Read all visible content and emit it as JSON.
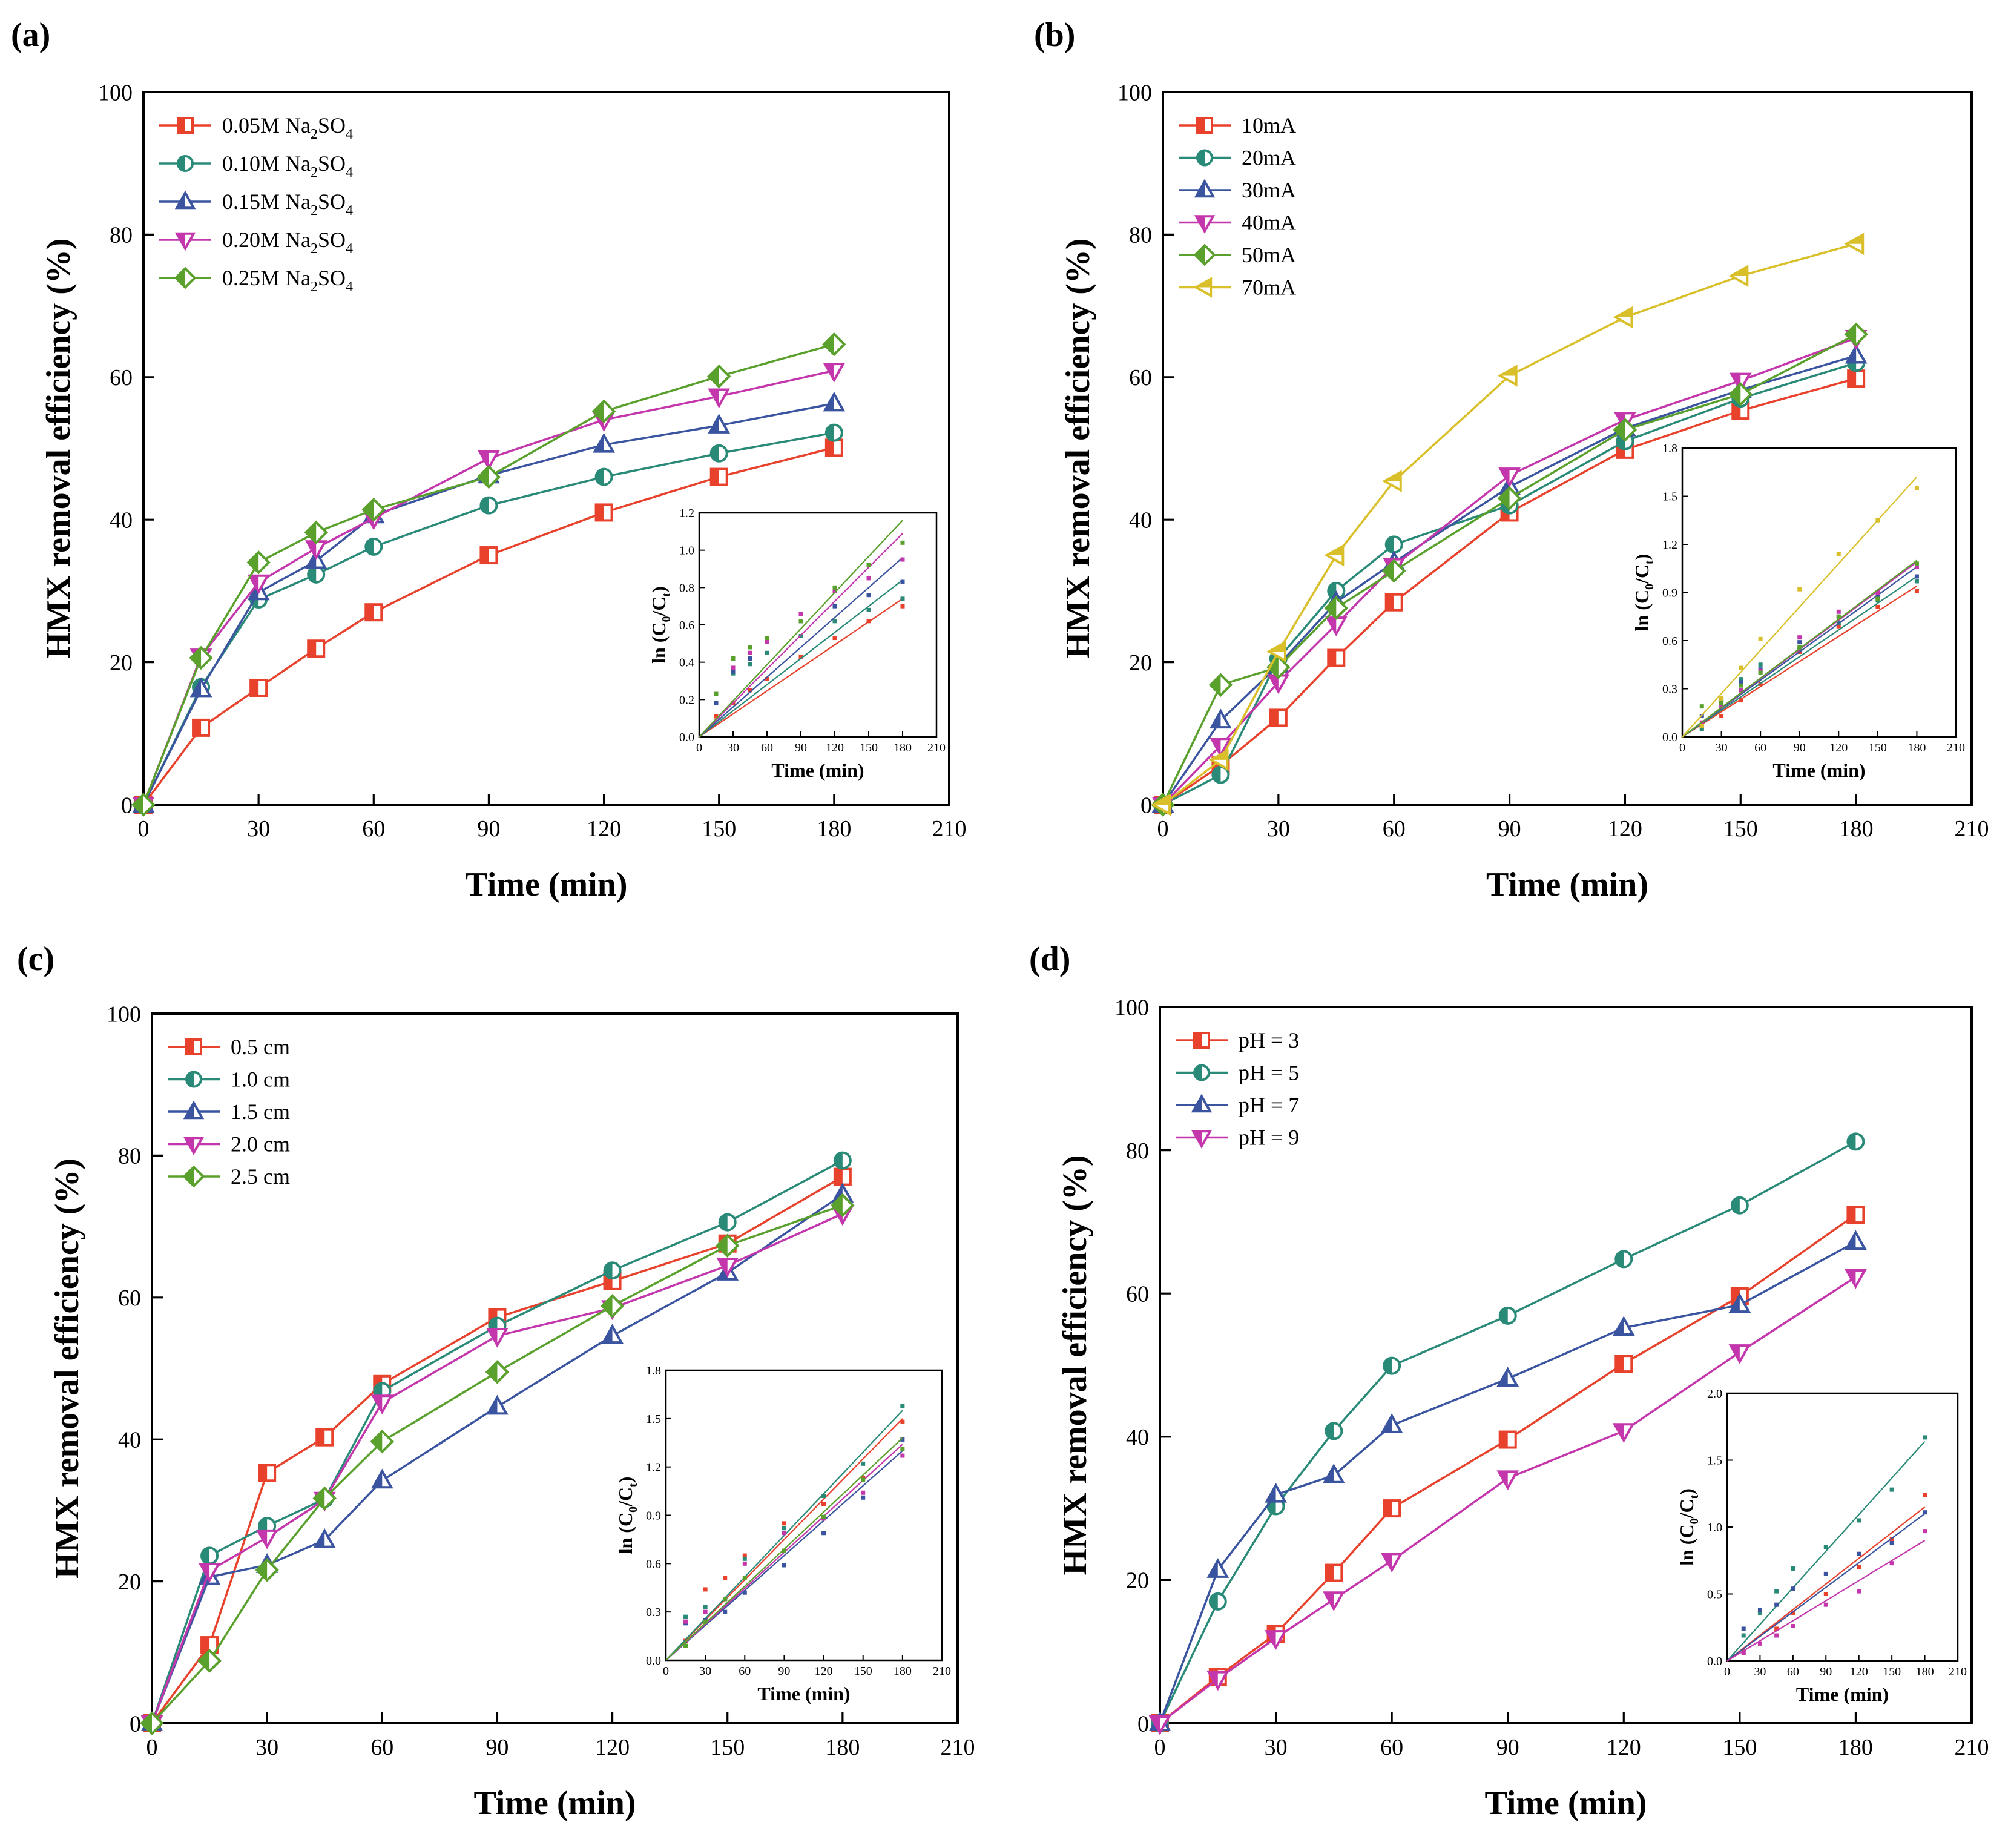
{
  "figure": {
    "panels": [
      {
        "letter": "(a)",
        "xlabel": "Time (min)",
        "ylabel": "HMX removal efficiency (%)",
        "inset": {
          "xlabel": "Time (min)",
          "ylabel": "ln (C0/Ct)",
          "ylabel_main": "ln (C",
          "ylabel_sub0": "0",
          "ylabel_mid": "/C",
          "ylabel_subt": "t",
          "ylabel_end": ")"
        }
      },
      {
        "letter": "(b)",
        "xlabel": "Time (min)",
        "ylabel": "HMX removal efficiency (%)",
        "inset": {
          "xlabel": "Time (min)",
          "ylabel": "ln (C0/Ct)",
          "ylabel_main": "ln (C",
          "ylabel_sub0": "0",
          "ylabel_mid": "/C",
          "ylabel_subt": "t",
          "ylabel_end": ")"
        }
      },
      {
        "letter": "(c)",
        "xlabel": "Time (min)",
        "ylabel": "HMX removal efficiency (%)",
        "inset": {
          "xlabel": "Time (min)",
          "ylabel": "ln (C0/Ct)",
          "ylabel_main": "ln (C",
          "ylabel_sub0": "0",
          "ylabel_mid": "/C",
          "ylabel_subt": "t",
          "ylabel_end": ")"
        }
      },
      {
        "letter": "(d)",
        "xlabel": "Time (min)",
        "ylabel": "HMX removal efficiency (%)",
        "inset": {
          "xlabel": "Time (min)",
          "ylabel": "ln (C0/Ct)",
          "ylabel_main": "ln (C",
          "ylabel_sub0": "0",
          "ylabel_mid": "/C",
          "ylabel_subt": "t",
          "ylabel_end": ")"
        }
      }
    ]
  },
  "chart_data": [
    {
      "panel": "(a)",
      "type": "line",
      "xlabel": "Time (min)",
      "ylabel": "HMX removal efficiency (%)",
      "xlim": [
        0,
        210
      ],
      "ylim": [
        0,
        100
      ],
      "xticks": [
        0,
        30,
        60,
        90,
        120,
        150,
        180,
        210
      ],
      "yticks": [
        0,
        20,
        40,
        60,
        80,
        100
      ],
      "legend_position": "top-left",
      "x": [
        0,
        15,
        30,
        45,
        60,
        90,
        120,
        150,
        180
      ],
      "series": [
        {
          "name": "0.05M Na2SO4",
          "label_pre": "0.05M Na",
          "label_s1": "2",
          "label_mid": "SO",
          "label_s2": "4",
          "color": "#e8412c",
          "marker": "square",
          "values": [
            0,
            10.8,
            16.4,
            21.9,
            27,
            35,
            41,
            46,
            50.1
          ]
        },
        {
          "name": "0.10M Na2SO4",
          "label_pre": "0.10M Na",
          "label_s1": "2",
          "label_mid": "SO",
          "label_s2": "4",
          "color": "#2a8a78",
          "marker": "circle",
          "values": [
            0,
            16.5,
            28.8,
            32.3,
            36.2,
            42,
            46,
            49.3,
            52.2
          ]
        },
        {
          "name": "0.15M Na2SO4",
          "label_pre": "0.15M Na",
          "label_s1": "2",
          "label_mid": "SO",
          "label_s2": "4",
          "color": "#3a54a0",
          "marker": "triangle-up",
          "values": [
            0,
            16.2,
            29.8,
            34.2,
            40.6,
            46.2,
            50.5,
            53.2,
            56.3
          ]
        },
        {
          "name": "0.20M Na2SO4",
          "label_pre": "0.20M Na",
          "label_s1": "2",
          "label_mid": "SO",
          "label_s2": "4",
          "color": "#c436ac",
          "marker": "triangle-down",
          "values": [
            0,
            20.8,
            31.2,
            36,
            40.2,
            48.6,
            54,
            57.3,
            60.9
          ]
        },
        {
          "name": "0.25M Na2SO4",
          "label_pre": "0.25M Na",
          "label_s1": "2",
          "label_mid": "SO",
          "label_s2": "4",
          "color": "#5aa02c",
          "marker": "diamond",
          "values": [
            0,
            20.6,
            34,
            38.2,
            41.4,
            46,
            55.2,
            60.1,
            64.6
          ]
        }
      ],
      "inset": {
        "xlabel": "Time (min)",
        "ylabel": "ln (C0/Ct)",
        "xlim": [
          0,
          210
        ],
        "ylim": [
          0,
          1.2
        ],
        "xticks": [
          0,
          30,
          60,
          90,
          120,
          150,
          180,
          210
        ],
        "yticks": [
          0.0,
          0.2,
          0.4,
          0.6,
          0.8,
          1.0,
          1.2
        ],
        "x": [
          15,
          30,
          45,
          60,
          90,
          120,
          150,
          180
        ],
        "series": [
          {
            "name": "0.05M Na2SO4",
            "color": "#e8412c",
            "values": [
              0.11,
              0.18,
              0.25,
              0.31,
              0.43,
              0.53,
              0.62,
              0.7
            ],
            "fit_end": 0.74
          },
          {
            "name": "0.10M Na2SO4",
            "color": "#2a8a78",
            "values": [
              0.18,
              0.34,
              0.39,
              0.45,
              0.54,
              0.62,
              0.68,
              0.74
            ],
            "fit_end": 0.84
          },
          {
            "name": "0.15M Na2SO4",
            "color": "#3a54a0",
            "values": [
              0.18,
              0.35,
              0.42,
              0.52,
              0.62,
              0.7,
              0.76,
              0.83
            ],
            "fit_end": 0.96
          },
          {
            "name": "0.20M Na2SO4",
            "color": "#c436ac",
            "values": [
              0.23,
              0.37,
              0.45,
              0.51,
              0.66,
              0.78,
              0.85,
              0.95
            ],
            "fit_end": 1.09
          },
          {
            "name": "0.25M Na2SO4",
            "color": "#5aa02c",
            "values": [
              0.23,
              0.42,
              0.48,
              0.53,
              0.62,
              0.8,
              0.92,
              1.04
            ],
            "fit_end": 1.16
          }
        ]
      }
    },
    {
      "panel": "(b)",
      "type": "line",
      "xlabel": "Time (min)",
      "ylabel": "HMX removal efficiency (%)",
      "xlim": [
        0,
        210
      ],
      "ylim": [
        0,
        100
      ],
      "xticks": [
        0,
        30,
        60,
        90,
        120,
        150,
        180,
        210
      ],
      "yticks": [
        0,
        20,
        40,
        60,
        80,
        100
      ],
      "legend_position": "top-left",
      "x": [
        0,
        15,
        30,
        45,
        60,
        90,
        120,
        150,
        180
      ],
      "series": [
        {
          "name": "10mA",
          "color": "#e8412c",
          "marker": "square",
          "values": [
            0,
            5.5,
            12.2,
            20.6,
            28.4,
            41,
            49.8,
            55.3,
            59.8
          ]
        },
        {
          "name": "20mA",
          "color": "#2a8a78",
          "marker": "circle",
          "values": [
            0,
            4.2,
            20.5,
            30,
            36.5,
            42,
            51,
            57,
            62
          ]
        },
        {
          "name": "30mA",
          "color": "#3a54a0",
          "marker": "triangle-up",
          "values": [
            0,
            11.8,
            19.6,
            28.4,
            34,
            44.6,
            52.8,
            58.2,
            63
          ]
        },
        {
          "name": "40mA",
          "color": "#c436ac",
          "marker": "triangle-down",
          "values": [
            0,
            8.3,
            17.2,
            25.3,
            33.5,
            46.2,
            54,
            59.5,
            65.5
          ]
        },
        {
          "name": "50mA",
          "color": "#5aa02c",
          "marker": "diamond",
          "values": [
            0,
            16.8,
            19.3,
            27.6,
            32.8,
            43,
            52.6,
            57.6,
            66
          ]
        },
        {
          "name": "70mA",
          "color": "#d9c02a",
          "marker": "triangle-left",
          "values": [
            0,
            6.3,
            21.5,
            35,
            45.4,
            60.2,
            68.4,
            74.2,
            78.7
          ]
        }
      ],
      "inset": {
        "xlabel": "Time (min)",
        "ylabel": "ln (C0/Ct)",
        "xlim": [
          0,
          210
        ],
        "ylim": [
          0,
          1.8
        ],
        "xticks": [
          0,
          30,
          60,
          90,
          120,
          150,
          180,
          210
        ],
        "yticks": [
          0.0,
          0.3,
          0.6,
          0.9,
          1.2,
          1.5,
          1.8
        ],
        "x": [
          15,
          30,
          45,
          60,
          90,
          120,
          150,
          180
        ],
        "series": [
          {
            "name": "10mA",
            "color": "#e8412c",
            "values": [
              0.06,
              0.13,
              0.23,
              0.33,
              0.53,
              0.69,
              0.81,
              0.91
            ],
            "fit_end": 0.94
          },
          {
            "name": "20mA",
            "color": "#2a8a78",
            "values": [
              0.05,
              0.23,
              0.36,
              0.45,
              0.55,
              0.71,
              0.85,
              0.97
            ],
            "fit_end": 1.0
          },
          {
            "name": "30mA",
            "color": "#3a54a0",
            "values": [
              0.13,
              0.22,
              0.34,
              0.42,
              0.59,
              0.75,
              0.87,
              1.0
            ],
            "fit_end": 1.06
          },
          {
            "name": "40mA",
            "color": "#c436ac",
            "values": [
              0.09,
              0.19,
              0.29,
              0.41,
              0.62,
              0.78,
              0.9,
              1.06
            ],
            "fit_end": 1.09
          },
          {
            "name": "50mA",
            "color": "#5aa02c",
            "values": [
              0.19,
              0.21,
              0.32,
              0.4,
              0.56,
              0.75,
              0.86,
              1.08
            ],
            "fit_end": 1.1
          },
          {
            "name": "70mA",
            "color": "#d9c02a",
            "values": [
              0.07,
              0.24,
              0.43,
              0.61,
              0.92,
              1.14,
              1.35,
              1.55
            ],
            "fit_end": 1.62
          }
        ]
      }
    },
    {
      "panel": "(c)",
      "type": "line",
      "xlabel": "Time (min)",
      "ylabel": "HMX removal efficiency (%)",
      "xlim": [
        0,
        210
      ],
      "ylim": [
        0,
        100
      ],
      "xticks": [
        0,
        30,
        60,
        90,
        120,
        150,
        180,
        210
      ],
      "yticks": [
        0,
        20,
        40,
        60,
        80,
        100
      ],
      "legend_position": "top-left",
      "x": [
        0,
        15,
        30,
        45,
        60,
        90,
        120,
        150,
        180
      ],
      "series": [
        {
          "name": "0.5 cm",
          "color": "#e8412c",
          "marker": "square",
          "values": [
            0,
            11,
            35.3,
            40.3,
            47.8,
            57.2,
            62.3,
            67.6,
            77
          ]
        },
        {
          "name": "1.0 cm",
          "color": "#2a8a78",
          "marker": "circle",
          "values": [
            0,
            23.6,
            27.8,
            31.6,
            46.8,
            56,
            63.8,
            70.6,
            79.3
          ]
        },
        {
          "name": "1.5 cm",
          "color": "#3a54a0",
          "marker": "triangle-up",
          "values": [
            0,
            20.6,
            22.3,
            25.8,
            34.2,
            44.6,
            54.6,
            63.5,
            74.5
          ]
        },
        {
          "name": "2.0 cm",
          "color": "#c436ac",
          "marker": "triangle-down",
          "values": [
            0,
            21.5,
            26.2,
            31.5,
            45.2,
            54.6,
            58.5,
            64.5,
            71.8
          ]
        },
        {
          "name": "2.5 cm",
          "color": "#5aa02c",
          "marker": "diamond",
          "values": [
            0,
            8.8,
            21.6,
            31.7,
            39.7,
            49.5,
            58.8,
            67.3,
            73
          ]
        }
      ],
      "inset": {
        "xlabel": "Time (min)",
        "ylabel": "ln (C0/Ct)",
        "xlim": [
          0,
          210
        ],
        "ylim": [
          0,
          1.8
        ],
        "xticks": [
          0,
          30,
          60,
          90,
          120,
          150,
          180,
          210
        ],
        "yticks": [
          0.0,
          0.3,
          0.6,
          0.9,
          1.2,
          1.5,
          1.8
        ],
        "x": [
          15,
          30,
          45,
          60,
          90,
          120,
          150,
          180
        ],
        "series": [
          {
            "name": "0.5 cm",
            "color": "#e8412c",
            "values": [
              0.12,
              0.44,
              0.51,
              0.65,
              0.85,
              0.97,
              1.13,
              1.48
            ],
            "fit_end": 1.5
          },
          {
            "name": "1.0 cm",
            "color": "#2a8a78",
            "values": [
              0.27,
              0.33,
              0.38,
              0.63,
              0.82,
              1.02,
              1.22,
              1.58
            ],
            "fit_end": 1.55
          },
          {
            "name": "1.5 cm",
            "color": "#3a54a0",
            "values": [
              0.23,
              0.25,
              0.3,
              0.42,
              0.59,
              0.79,
              1.01,
              1.37
            ],
            "fit_end": 1.3
          },
          {
            "name": "2.0 cm",
            "color": "#c436ac",
            "values": [
              0.24,
              0.3,
              0.38,
              0.6,
              0.79,
              0.88,
              1.04,
              1.27
            ],
            "fit_end": 1.34
          },
          {
            "name": "2.5 cm",
            "color": "#5aa02c",
            "values": [
              0.09,
              0.24,
              0.38,
              0.51,
              0.68,
              0.89,
              1.12,
              1.31
            ],
            "fit_end": 1.38
          }
        ]
      }
    },
    {
      "panel": "(d)",
      "type": "line",
      "xlabel": "Time (min)",
      "ylabel": "HMX removal efficiency (%)",
      "xlim": [
        0,
        210
      ],
      "ylim": [
        0,
        100
      ],
      "xticks": [
        0,
        30,
        60,
        90,
        120,
        150,
        180,
        210
      ],
      "yticks": [
        0,
        20,
        40,
        60,
        80,
        100
      ],
      "legend_position": "top-left",
      "x": [
        0,
        15,
        30,
        45,
        60,
        90,
        120,
        150,
        180
      ],
      "series": [
        {
          "name": "pH = 3",
          "color": "#e8412c",
          "marker": "square",
          "values": [
            0,
            6.5,
            12.5,
            21,
            30,
            39.6,
            50.2,
            59.6,
            71
          ]
        },
        {
          "name": "pH = 5",
          "color": "#2a8a78",
          "marker": "circle",
          "values": [
            0,
            17,
            30.3,
            40.8,
            49.9,
            56.9,
            64.8,
            72.3,
            81.2
          ]
        },
        {
          "name": "pH = 7",
          "color": "#3a54a0",
          "marker": "triangle-up",
          "values": [
            0,
            21.4,
            31.9,
            34.6,
            41.6,
            48.1,
            55.2,
            58.4,
            67.2
          ]
        },
        {
          "name": "pH = 9",
          "color": "#c436ac",
          "marker": "triangle-down",
          "values": [
            0,
            6.2,
            11.9,
            17.3,
            22.7,
            34.2,
            40.8,
            51.8,
            62.3
          ]
        }
      ],
      "inset": {
        "xlabel": "Time (min)",
        "ylabel": "ln (C0/Ct)",
        "xlim": [
          0,
          210
        ],
        "ylim": [
          0,
          2.0
        ],
        "xticks": [
          0,
          30,
          60,
          90,
          120,
          150,
          180,
          210
        ],
        "yticks": [
          0.0,
          0.5,
          1.0,
          1.5,
          2.0
        ],
        "x": [
          15,
          30,
          45,
          60,
          90,
          120,
          150,
          180
        ],
        "series": [
          {
            "name": "pH = 3",
            "color": "#e8412c",
            "values": [
              0.07,
              0.13,
              0.24,
              0.36,
              0.5,
              0.7,
              0.91,
              1.24
            ],
            "fit_end": 1.15
          },
          {
            "name": "pH = 5",
            "color": "#2a8a78",
            "values": [
              0.19,
              0.36,
              0.52,
              0.69,
              0.85,
              1.05,
              1.28,
              1.67
            ],
            "fit_end": 1.64
          },
          {
            "name": "pH = 7",
            "color": "#3a54a0",
            "values": [
              0.24,
              0.38,
              0.42,
              0.54,
              0.65,
              0.8,
              0.88,
              1.11
            ],
            "fit_end": 1.1
          },
          {
            "name": "pH = 9",
            "color": "#c436ac",
            "values": [
              0.06,
              0.13,
              0.19,
              0.26,
              0.42,
              0.52,
              0.73,
              0.97
            ],
            "fit_end": 0.9
          }
        ]
      }
    }
  ]
}
